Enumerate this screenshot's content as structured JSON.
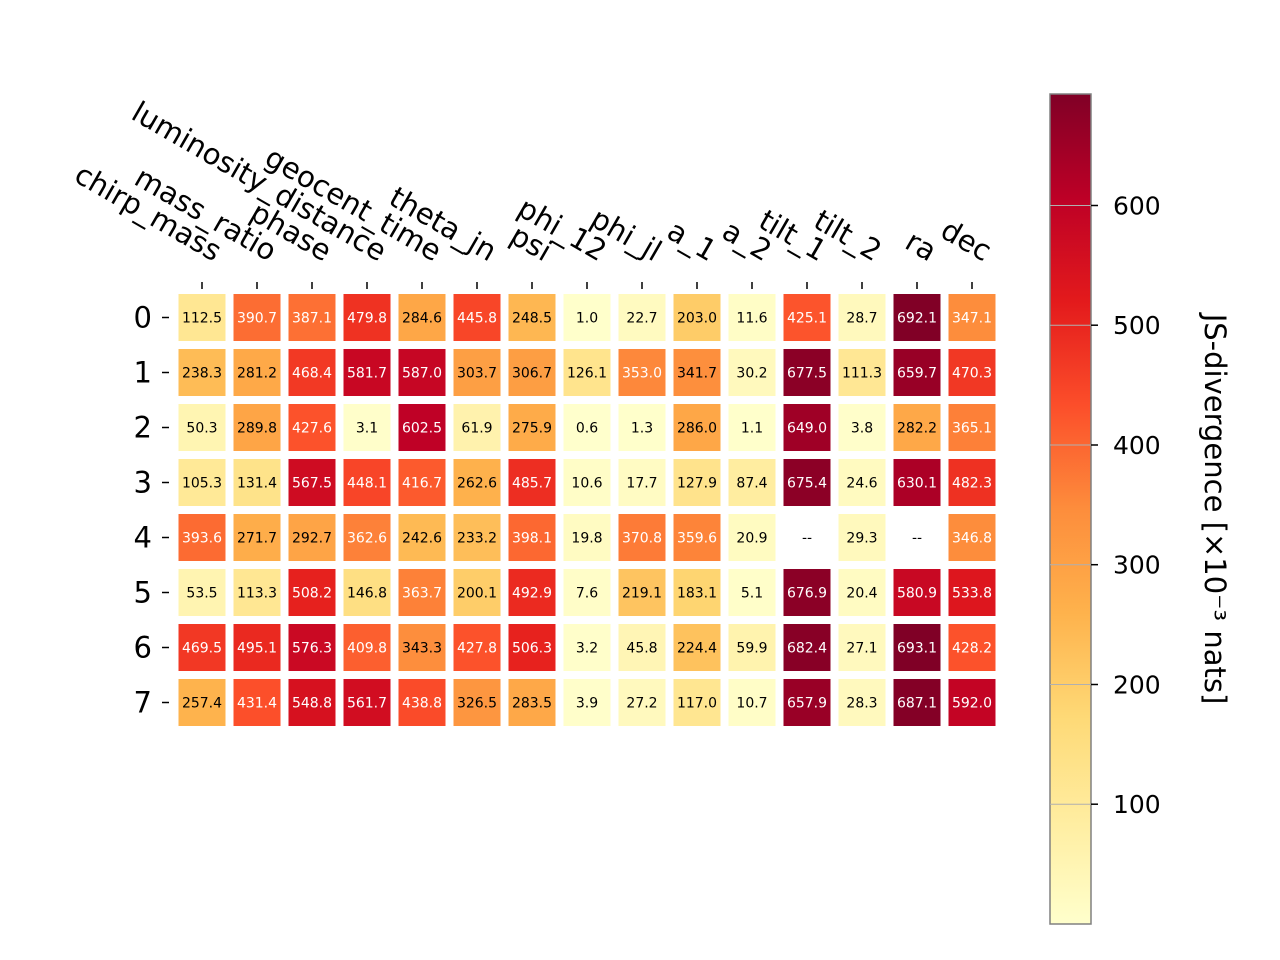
{
  "chart_data": {
    "type": "heatmap",
    "colormap": "YlOrRd",
    "columns": [
      "chirp_mass",
      "mass_ratio",
      "phase",
      "luminosity_distance",
      "geocent_time",
      "theta_jn",
      "psi",
      "phi_12",
      "phi_jl",
      "a_1",
      "a_2",
      "tilt_1",
      "tilt_2",
      "ra",
      "dec"
    ],
    "rows": [
      "0",
      "1",
      "2",
      "3",
      "4",
      "5",
      "6",
      "7"
    ],
    "values": [
      [
        112.5,
        390.7,
        387.1,
        479.8,
        284.6,
        445.8,
        248.5,
        1.0,
        22.7,
        203.0,
        11.6,
        425.1,
        28.7,
        692.1,
        347.1
      ],
      [
        238.3,
        281.2,
        468.4,
        581.7,
        587.0,
        303.7,
        306.7,
        126.1,
        353.0,
        341.7,
        30.2,
        677.5,
        111.3,
        659.7,
        470.3
      ],
      [
        50.3,
        289.8,
        427.6,
        3.1,
        602.5,
        61.9,
        275.9,
        0.6,
        1.3,
        286.0,
        1.1,
        649.0,
        3.8,
        282.2,
        365.1
      ],
      [
        105.3,
        131.4,
        567.5,
        448.1,
        416.7,
        262.6,
        485.7,
        10.6,
        17.7,
        127.9,
        87.4,
        675.4,
        24.6,
        630.1,
        482.3
      ],
      [
        393.6,
        271.7,
        292.7,
        362.6,
        242.6,
        233.2,
        398.1,
        19.8,
        370.8,
        359.6,
        20.9,
        null,
        29.3,
        null,
        346.8
      ],
      [
        53.5,
        113.3,
        508.2,
        146.8,
        363.7,
        200.1,
        492.9,
        7.6,
        219.1,
        183.1,
        5.1,
        676.9,
        20.4,
        580.9,
        533.8
      ],
      [
        469.5,
        495.1,
        576.3,
        409.8,
        343.3,
        427.8,
        506.3,
        3.2,
        45.8,
        224.4,
        59.9,
        682.4,
        27.1,
        693.1,
        428.2
      ],
      [
        257.4,
        431.4,
        548.8,
        561.7,
        438.8,
        326.5,
        283.5,
        3.9,
        27.2,
        117.0,
        10.7,
        657.9,
        28.3,
        687.1,
        592.0
      ]
    ],
    "missing_label": "--",
    "colorbar": {
      "label": "JS-divergence [×10⁻³ nats]",
      "ticks": [
        100,
        200,
        300,
        400,
        500,
        600
      ],
      "range": [
        0,
        693.1
      ]
    }
  }
}
